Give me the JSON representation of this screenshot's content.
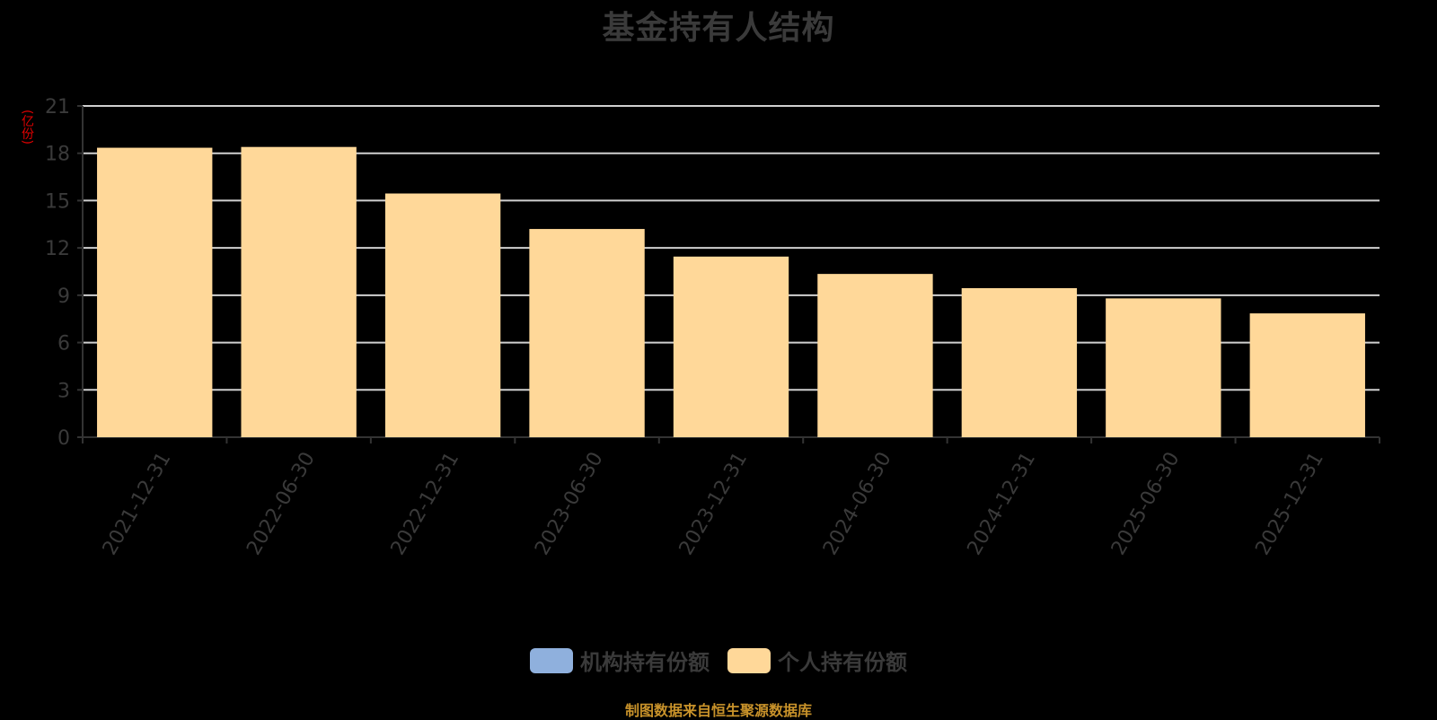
{
  "title": "基金持有人结构",
  "y_unit": "(亿份)",
  "legend": [
    {
      "label": "机构持有份额",
      "color": "#8fb0dd"
    },
    {
      "label": "个人持有份额",
      "color": "#ffd899"
    }
  ],
  "source": "制图数据来自恒生聚源数据库",
  "chart_data": {
    "type": "bar",
    "stacked": true,
    "title": "基金持有人结构",
    "xlabel": "",
    "ylabel": "(亿份)",
    "ylim": [
      0,
      21
    ],
    "yticks": [
      0,
      3,
      6,
      9,
      12,
      15,
      18,
      21
    ],
    "grid": true,
    "legend_position": "bottom",
    "categories": [
      "2021-12-31",
      "2022-06-30",
      "2022-12-31",
      "2023-06-30",
      "2023-12-31",
      "2024-06-30",
      "2024-12-31",
      "2025-06-30",
      "2025-12-31"
    ],
    "series": [
      {
        "name": "机构持有份额",
        "color": "#8fb0dd",
        "values": [
          0,
          0,
          0,
          0,
          0,
          0,
          0,
          0,
          0
        ]
      },
      {
        "name": "个人持有份额",
        "color": "#ffd899",
        "values": [
          18.35,
          18.4,
          15.45,
          13.2,
          11.45,
          10.35,
          9.45,
          8.8,
          7.85
        ]
      }
    ]
  }
}
